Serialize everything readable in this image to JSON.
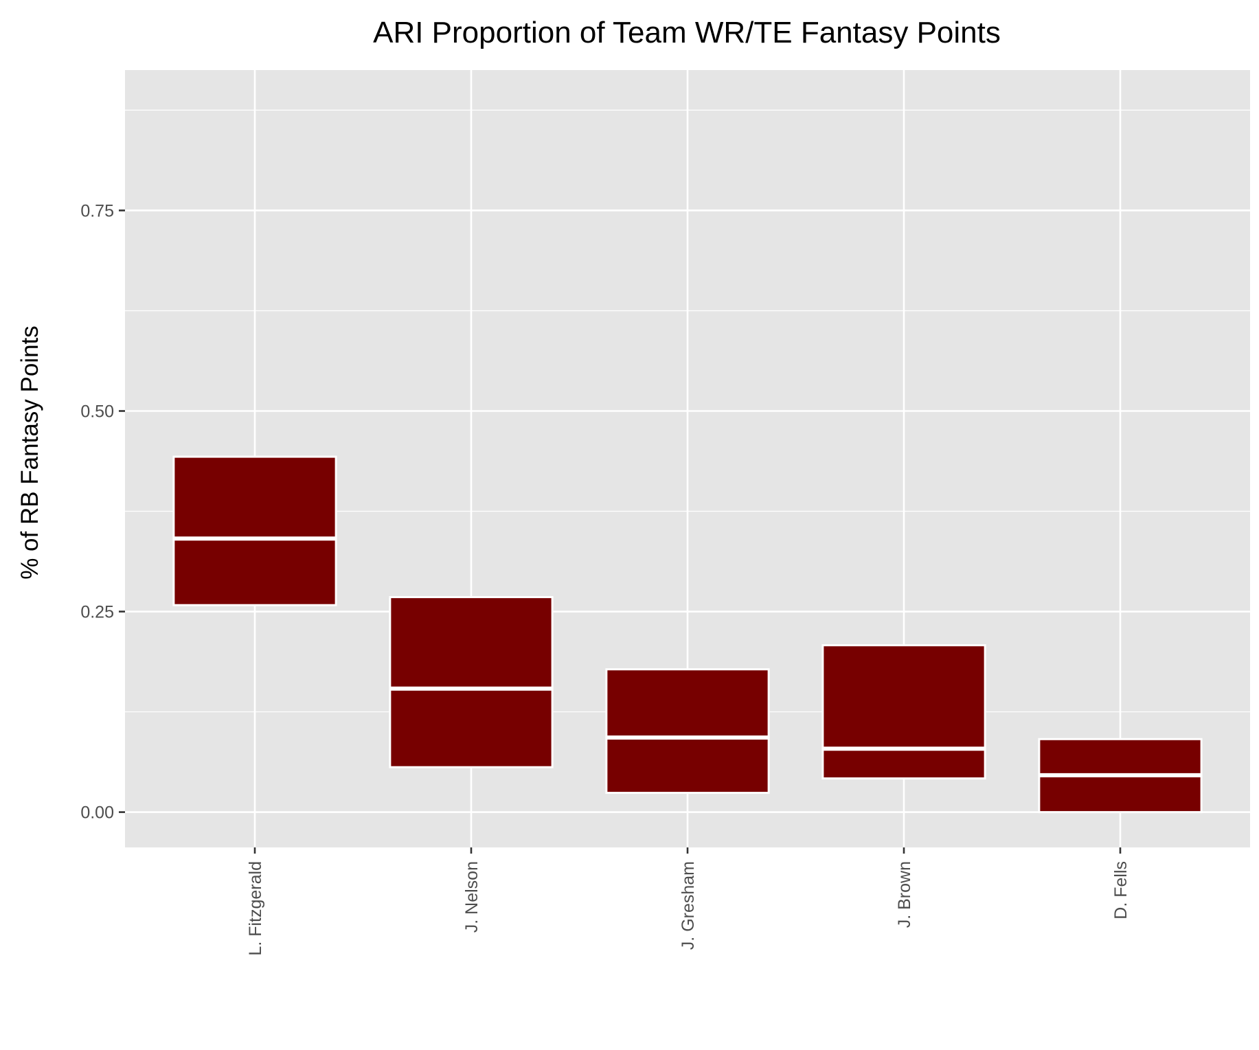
{
  "chart_data": {
    "type": "boxplot",
    "title": "ARI Proportion of Team WR/TE Fantasy Points",
    "xlabel": "",
    "ylabel": "% of RB Fantasy Points",
    "categories": [
      "L. Fitzgerald",
      "J. Nelson",
      "J. Gresham",
      "J. Brown",
      "D. Fells"
    ],
    "boxes": [
      {
        "name": "L. Fitzgerald",
        "q1": 0.258,
        "median": 0.341,
        "q3": 0.443,
        "whisker_low": 0.258,
        "whisker_high": 0.443
      },
      {
        "name": "J. Nelson",
        "q1": 0.056,
        "median": 0.154,
        "q3": 0.268,
        "whisker_low": 0.056,
        "whisker_high": 0.268
      },
      {
        "name": "J. Gresham",
        "q1": 0.024,
        "median": 0.093,
        "q3": 0.178,
        "whisker_low": 0.024,
        "whisker_high": 0.178
      },
      {
        "name": "J. Brown",
        "q1": 0.042,
        "median": 0.079,
        "q3": 0.208,
        "whisker_low": 0.042,
        "whisker_high": 0.208
      },
      {
        "name": "D. Fells",
        "q1": 0.0,
        "median": 0.046,
        "q3": 0.091,
        "whisker_low": 0.0,
        "whisker_high": 0.091
      }
    ],
    "ylim": [
      -0.044,
      0.925
    ],
    "yticks": [
      0.0,
      0.25,
      0.5,
      0.75
    ],
    "ytick_labels": [
      "0.00",
      "0.25",
      "0.50",
      "0.75"
    ],
    "y_minor_ticks": [
      0.125,
      0.375,
      0.625,
      0.875
    ],
    "grid": true,
    "legend": "none",
    "colors": {
      "box_fill": "#770000",
      "box_edge": "#ffffff",
      "panel_background": "#e5e5e5",
      "grid_line": "#ffffff",
      "tick_mark": "#333333"
    }
  }
}
